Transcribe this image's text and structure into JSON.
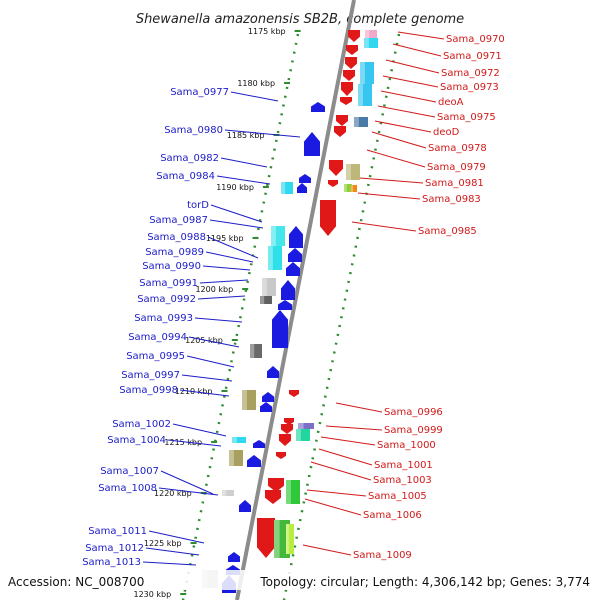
{
  "title": "Shewanella amazonensis SB2B, complete genome",
  "footer": {
    "accession": "Accession: NC_008700",
    "info": "Topology: circular; Length: 4,306,142 bp; Genes: 3,774"
  },
  "colors": {
    "left_label": "#1d1dc8",
    "right_label": "#d21a1a",
    "backbone": "#8c8c8c",
    "dotted_axis": "#2e8b2e",
    "forward_gene": "#e01818",
    "reverse_gene": "#1a1ae0"
  },
  "ticks": [
    "1175 kbp",
    "1180 kbp",
    "1185 kbp",
    "1190 kbp",
    "1195 kbp",
    "1200 kbp",
    "1205 kbp",
    "1210 kbp",
    "1215 kbp",
    "1220 kbp",
    "1225 kbp",
    "1230 kbp"
  ],
  "left_labels": [
    "Sama_0977",
    "Sama_0980",
    "Sama_0982",
    "Sama_0984",
    "torD",
    "Sama_0987",
    "Sama_0988",
    "Sama_0989",
    "Sama_0990",
    "Sama_0991",
    "Sama_0992",
    "Sama_0993",
    "Sama_0994",
    "Sama_0995",
    "Sama_0997",
    "Sama_0998",
    "Sama_1002",
    "Sama_1004",
    "Sama_1007",
    "Sama_1008",
    "Sama_1011",
    "Sama_1012",
    "Sama_1013"
  ],
  "right_labels": [
    "Sama_0970",
    "Sama_0971",
    "Sama_0972",
    "Sama_0973",
    "deoA",
    "Sama_0975",
    "deoD",
    "Sama_0978",
    "Sama_0979",
    "Sama_0981",
    "Sama_0983",
    "Sama_0985",
    "Sama_0996",
    "Sama_0999",
    "Sama_1000",
    "Sama_1001",
    "Sama_1003",
    "Sama_1005",
    "Sama_1006",
    "Sama_1009"
  ]
}
